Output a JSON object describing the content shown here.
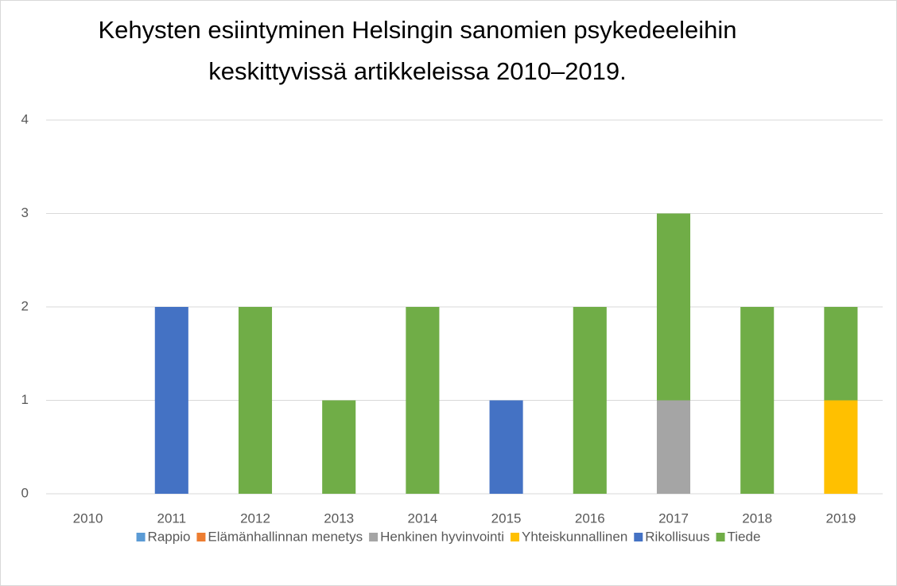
{
  "chart_data": {
    "type": "stacked_bar",
    "title": [
      "Kehysten esiintyminen Helsingin sanomien psykedeeleihin",
      "keskittyvissä artikkeleissa 2010–2019."
    ],
    "categories": [
      "2010",
      "2011",
      "2012",
      "2013",
      "2014",
      "2015",
      "2016",
      "2017",
      "2018",
      "2019"
    ],
    "series": [
      {
        "name": "Rappio",
        "color": "#5b9bd5",
        "values": [
          0,
          0,
          0,
          0,
          0,
          0,
          0,
          0,
          0,
          0
        ]
      },
      {
        "name": "Elämänhallinnan menetys",
        "color": "#ed7d31",
        "values": [
          0,
          0,
          0,
          0,
          0,
          0,
          0,
          0,
          0,
          0
        ]
      },
      {
        "name": "Henkinen hyvinvointi",
        "color": "#a5a5a5",
        "values": [
          0,
          0,
          0,
          0,
          0,
          0,
          0,
          1,
          0,
          0
        ]
      },
      {
        "name": "Yhteiskunnallinen",
        "color": "#ffc000",
        "values": [
          0,
          0,
          0,
          0,
          0,
          0,
          0,
          0,
          0,
          1
        ]
      },
      {
        "name": "Rikollisuus",
        "color": "#4472c4",
        "values": [
          0,
          2,
          0,
          0,
          0,
          1,
          0,
          0,
          0,
          0
        ]
      },
      {
        "name": "Tiede",
        "color": "#70ad47",
        "values": [
          0,
          0,
          2,
          1,
          2,
          0,
          2,
          2,
          2,
          1
        ]
      }
    ],
    "ylim": [
      0,
      4
    ],
    "yticks": [
      0,
      1,
      2,
      3,
      4
    ],
    "grid": true,
    "legend": "bottom"
  }
}
